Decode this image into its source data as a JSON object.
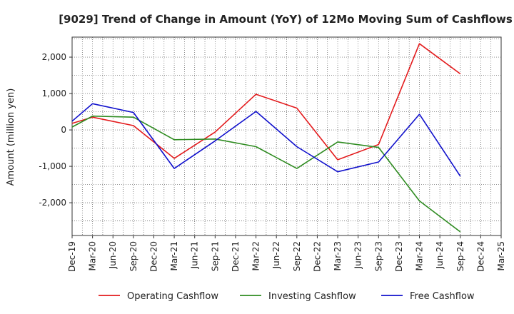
{
  "chart_data": {
    "type": "line",
    "title": "[9029]  Trend of Change in Amount (YoY) of 12Mo Moving Sum of Cashflows",
    "xlabel": "",
    "ylabel": "Amount (million yen)",
    "ylim": [
      -2900,
      2550
    ],
    "yticks": [
      2000,
      1000,
      0,
      -1000,
      -2000
    ],
    "ytick_labels": [
      "2,000",
      "1,000",
      "0",
      "-1,000",
      "-2,000"
    ],
    "categories": [
      "Dec-19",
      "Mar-20",
      "Jun-20",
      "Sep-20",
      "Dec-20",
      "Mar-21",
      "Jun-21",
      "Sep-21",
      "Dec-21",
      "Mar-22",
      "Jun-22",
      "Sep-22",
      "Dec-22",
      "Mar-23",
      "Jun-23",
      "Sep-23",
      "Dec-23",
      "Mar-24",
      "Jun-24",
      "Sep-24",
      "Dec-24",
      "Mar-25"
    ],
    "grid": true,
    "legend_position": "bottom",
    "series": [
      {
        "name": "Operating Cashflow",
        "color": "#e31a1c",
        "values": [
          180,
          350,
          null,
          120,
          null,
          -780,
          null,
          -60,
          null,
          980,
          null,
          600,
          null,
          -820,
          null,
          -400,
          null,
          2370,
          null,
          1540,
          null,
          null
        ]
      },
      {
        "name": "Investing Cashflow",
        "color": "#2e8b20",
        "values": [
          80,
          380,
          null,
          350,
          null,
          -270,
          null,
          -250,
          null,
          -460,
          null,
          -1060,
          null,
          -330,
          null,
          -480,
          null,
          -1950,
          null,
          -2800,
          null,
          null
        ]
      },
      {
        "name": "Free Cashflow",
        "color": "#1010cc",
        "values": [
          240,
          720,
          null,
          480,
          null,
          -1060,
          null,
          -300,
          null,
          510,
          null,
          -460,
          null,
          -1150,
          null,
          -880,
          null,
          430,
          null,
          -1270,
          null,
          null
        ]
      }
    ]
  }
}
